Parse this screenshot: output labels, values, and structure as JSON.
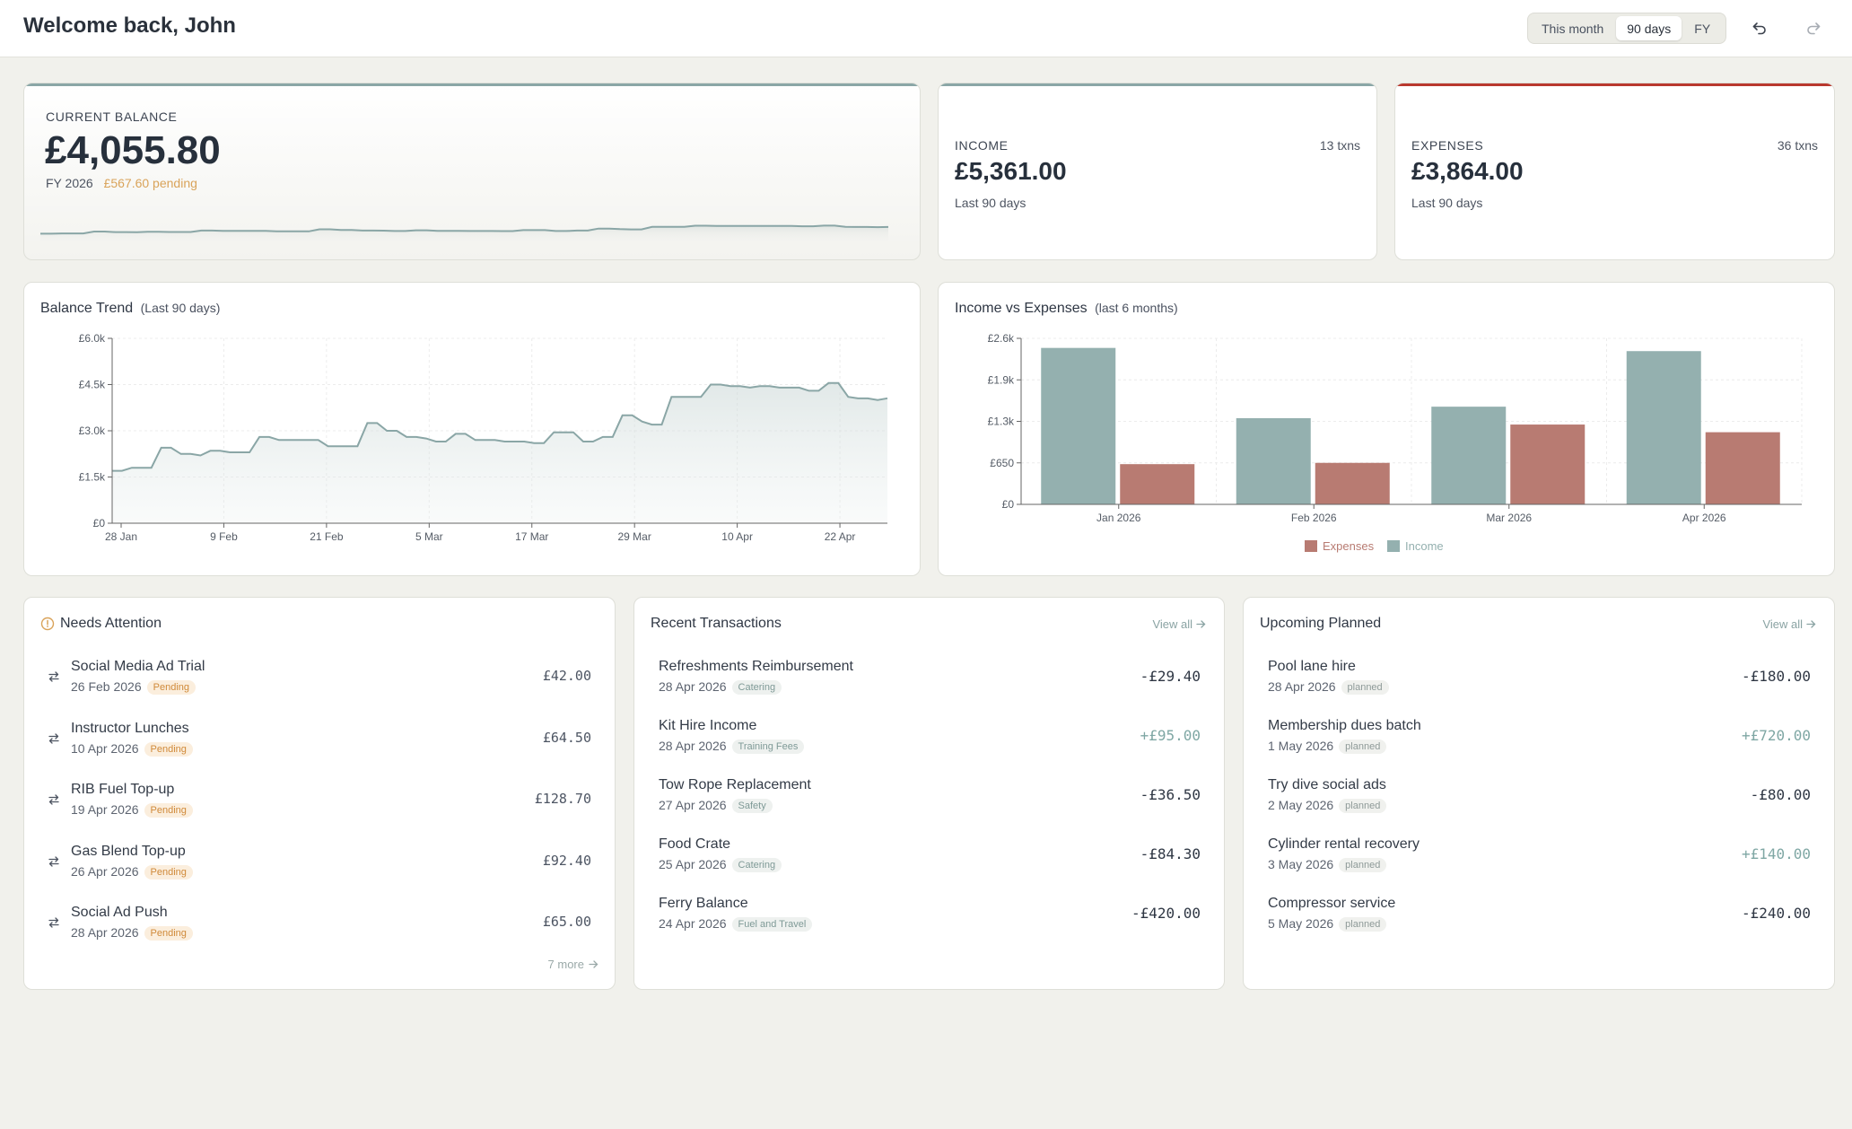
{
  "header": {
    "welcome": "Welcome back, John",
    "periods": [
      "This month",
      "90 days",
      "FY"
    ],
    "active_period": "90 days",
    "undo_icon": "undo-icon",
    "redo_icon": "redo-icon"
  },
  "balance": {
    "label": "CURRENT BALANCE",
    "amount": "£4,055.80",
    "fy": "FY 2026",
    "pending": "£567.60 pending"
  },
  "income": {
    "label": "INCOME",
    "count": "13 txns",
    "amount": "£5,361.00",
    "period": "Last 90 days"
  },
  "expenses": {
    "label": "EXPENSES",
    "count": "36 txns",
    "amount": "£3,864.00",
    "period": "Last 90 days"
  },
  "colors": {
    "income": "#94b0af",
    "expenses": "#b87b72",
    "accent_teal": "#8aa6a6",
    "accent_red": "#b9382e",
    "pending": "#d9a35a"
  },
  "balance_trend": {
    "title": "Balance Trend",
    "subtitle": "(Last 90 days)"
  },
  "income_vs_expenses": {
    "title": "Income vs Expenses",
    "subtitle": "(last 6 months)"
  },
  "chart_data": [
    {
      "type": "area",
      "title": "Balance Trend",
      "yticks": [
        "£0",
        "£1.5k",
        "£3.0k",
        "£4.5k",
        "£6.0k"
      ],
      "ylim": [
        0,
        6000
      ],
      "xticks": [
        "28 Jan",
        "9 Feb",
        "21 Feb",
        "5 Mar",
        "17 Mar",
        "29 Mar",
        "10 Apr",
        "22 Apr"
      ],
      "grid": true,
      "y": [
        1700,
        1700,
        1800,
        1800,
        1800,
        2450,
        2450,
        2250,
        2250,
        2200,
        2350,
        2350,
        2300,
        2300,
        2300,
        2800,
        2800,
        2700,
        2700,
        2700,
        2700,
        2700,
        2500,
        2500,
        2500,
        2500,
        3250,
        3250,
        3000,
        3000,
        2800,
        2800,
        2750,
        2650,
        2650,
        2900,
        2900,
        2700,
        2700,
        2700,
        2650,
        2650,
        2650,
        2600,
        2600,
        2950,
        2950,
        2950,
        2650,
        2650,
        2800,
        2800,
        3500,
        3500,
        3300,
        3200,
        3200,
        4100,
        4100,
        4100,
        4100,
        4500,
        4500,
        4450,
        4450,
        4400,
        4450,
        4450,
        4400,
        4400,
        4400,
        4300,
        4300,
        4550,
        4550,
        4100,
        4050,
        4050,
        4000,
        4055
      ]
    },
    {
      "type": "bar",
      "title": "Income vs Expenses",
      "categories": [
        "Jan 2026",
        "Feb 2026",
        "Mar 2026",
        "Apr 2026"
      ],
      "yticks": [
        "£0",
        "£650",
        "£1.3k",
        "£1.9k",
        "£2.6k"
      ],
      "ylim": [
        0,
        2600
      ],
      "grid": true,
      "legend": "bottom",
      "series": [
        {
          "name": "Income",
          "values": [
            2450,
            1350,
            1530,
            2400
          ]
        },
        {
          "name": "Expenses",
          "values": [
            630,
            650,
            1250,
            1130
          ]
        }
      ]
    }
  ],
  "attention": {
    "title": "Needs Attention",
    "more": "7 more",
    "items": [
      {
        "name": "Social Media Ad Trial",
        "date": "26 Feb 2026",
        "badge": "Pending",
        "amount": "£42.00"
      },
      {
        "name": "Instructor Lunches",
        "date": "10 Apr 2026",
        "badge": "Pending",
        "amount": "£64.50"
      },
      {
        "name": "RIB Fuel Top-up",
        "date": "19 Apr 2026",
        "badge": "Pending",
        "amount": "£128.70"
      },
      {
        "name": "Gas Blend Top-up",
        "date": "26 Apr 2026",
        "badge": "Pending",
        "amount": "£92.40"
      },
      {
        "name": "Social Ad Push",
        "date": "28 Apr 2026",
        "badge": "Pending",
        "amount": "£65.00"
      }
    ]
  },
  "recent": {
    "title": "Recent Transactions",
    "view_all": "View all",
    "items": [
      {
        "name": "Refreshments Reimbursement",
        "date": "28 Apr 2026",
        "badge": "Catering",
        "amount": "-£29.40",
        "positive": false
      },
      {
        "name": "Kit Hire Income",
        "date": "28 Apr 2026",
        "badge": "Training Fees",
        "amount": "+£95.00",
        "positive": true
      },
      {
        "name": "Tow Rope Replacement",
        "date": "27 Apr 2026",
        "badge": "Safety",
        "amount": "-£36.50",
        "positive": false
      },
      {
        "name": "Food Crate",
        "date": "25 Apr 2026",
        "badge": "Catering",
        "amount": "-£84.30",
        "positive": false
      },
      {
        "name": "Ferry Balance",
        "date": "24 Apr 2026",
        "badge": "Fuel and Travel",
        "amount": "-£420.00",
        "positive": false
      }
    ]
  },
  "upcoming": {
    "title": "Upcoming Planned",
    "view_all": "View all",
    "items": [
      {
        "name": "Pool lane hire",
        "date": "28 Apr 2026",
        "badge": "planned",
        "amount": "-£180.00",
        "positive": false
      },
      {
        "name": "Membership dues batch",
        "date": "1 May 2026",
        "badge": "planned",
        "amount": "+£720.00",
        "positive": true
      },
      {
        "name": "Try dive social ads",
        "date": "2 May 2026",
        "badge": "planned",
        "amount": "-£80.00",
        "positive": false
      },
      {
        "name": "Cylinder rental recovery",
        "date": "3 May 2026",
        "badge": "planned",
        "amount": "+£140.00",
        "positive": true
      },
      {
        "name": "Compressor service",
        "date": "5 May 2026",
        "badge": "planned",
        "amount": "-£240.00",
        "positive": false
      }
    ]
  }
}
